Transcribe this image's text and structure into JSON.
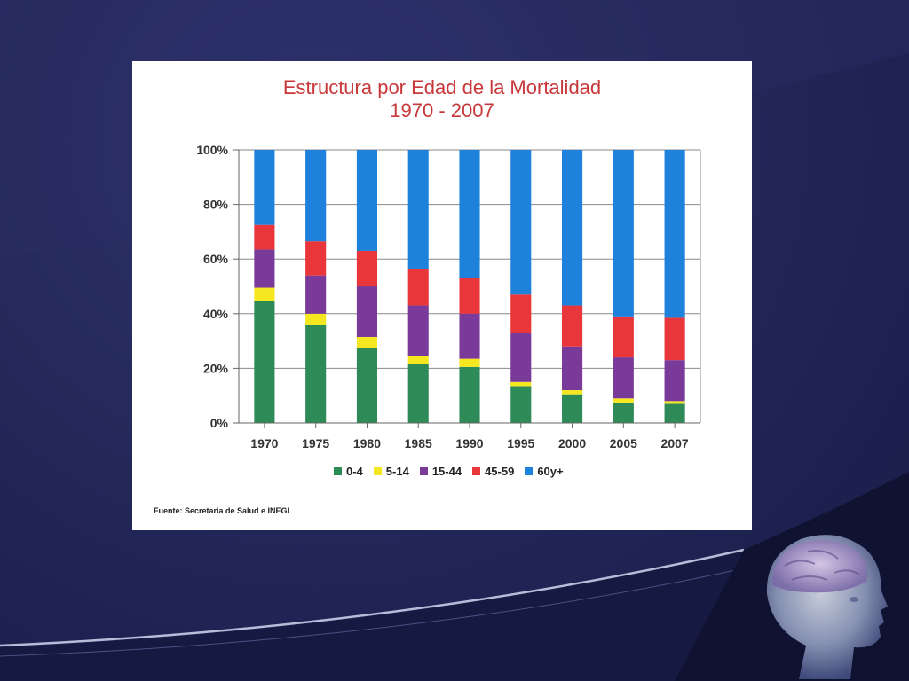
{
  "slide": {
    "title_line1": "Estructura por Edad de la Mortalidad",
    "title_line2": "1970 - 2007",
    "source": "Fuente: Secretaria de Salud e INEGI"
  },
  "colors": {
    "background": "#1d2150",
    "title": "#c8383a",
    "0-4": "#2e8b57",
    "5-14": "#f5e820",
    "15-44": "#7a3a9a",
    "45-59": "#e8363a",
    "60y+": "#1e82dc"
  },
  "icons": [
    "human-head-brain-illustration"
  ],
  "chart_data": {
    "type": "bar",
    "stacked": true,
    "title": "Estructura por Edad de la Mortalidad",
    "subtitle": "1970 - 2007",
    "xlabel": "",
    "ylabel": "",
    "ylim": [
      0,
      100
    ],
    "y_ticks": [
      "0%",
      "20%",
      "40%",
      "60%",
      "80%",
      "100%"
    ],
    "grid": true,
    "legend_position": "bottom",
    "categories": [
      "1970",
      "1975",
      "1980",
      "1985",
      "1990",
      "1995",
      "2000",
      "2005",
      "2007"
    ],
    "series": [
      {
        "name": "0-4",
        "values": [
          44.5,
          36,
          27.5,
          21.5,
          20.5,
          13.5,
          10.5,
          7.5,
          7
        ]
      },
      {
        "name": "5-14",
        "values": [
          5,
          4,
          4,
          3,
          3,
          1.5,
          1.5,
          1.5,
          1
        ]
      },
      {
        "name": "15-44",
        "values": [
          14,
          14,
          18.5,
          18.5,
          16.5,
          18,
          16,
          15,
          15
        ]
      },
      {
        "name": "45-59",
        "values": [
          9,
          12.5,
          13,
          13.5,
          13,
          14,
          15,
          15,
          15.5
        ]
      },
      {
        "name": "60y+",
        "values": [
          27.5,
          33.5,
          37,
          43.5,
          47,
          53,
          57,
          61,
          61.5
        ]
      }
    ]
  }
}
